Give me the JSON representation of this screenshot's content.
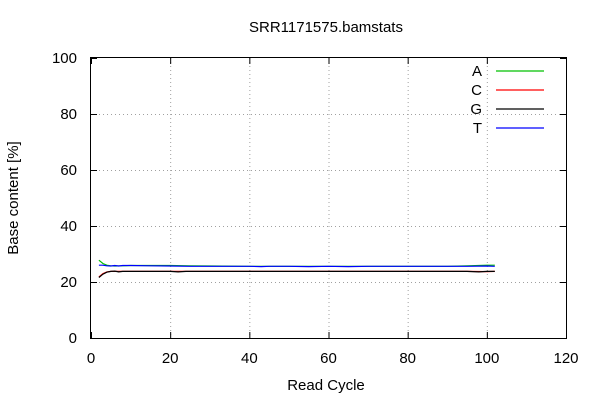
{
  "chart_data": {
    "type": "line",
    "title": "SRR1171575.bamstats",
    "xlabel": "Read Cycle",
    "ylabel": "Base content [%]",
    "xlim": [
      0,
      120
    ],
    "ylim": [
      0,
      100
    ],
    "xticks": [
      0,
      20,
      40,
      60,
      80,
      100,
      120
    ],
    "yticks": [
      0,
      20,
      40,
      60,
      80,
      100
    ],
    "grid": true,
    "legend_position": "top-right",
    "series": [
      {
        "name": "A",
        "color": "#00c000",
        "x": [
          2,
          3,
          4,
          5,
          6,
          8,
          10,
          15,
          20,
          25,
          30,
          40,
          50,
          60,
          70,
          80,
          90,
          95,
          100,
          102
        ],
        "y": [
          27.8,
          26.6,
          26.0,
          25.8,
          25.7,
          25.8,
          25.9,
          25.9,
          25.9,
          25.8,
          25.7,
          25.6,
          25.6,
          25.6,
          25.6,
          25.6,
          25.6,
          25.8,
          26.0,
          26.0
        ]
      },
      {
        "name": "C",
        "color": "#ff0000",
        "x": [
          2,
          3,
          4,
          5,
          6,
          8,
          10,
          15,
          20,
          25,
          30,
          40,
          50,
          60,
          70,
          80,
          90,
          95,
          100,
          102
        ],
        "y": [
          21.8,
          23.0,
          23.6,
          23.8,
          23.8,
          23.8,
          23.8,
          23.8,
          23.8,
          23.8,
          23.8,
          23.8,
          23.8,
          23.8,
          23.8,
          23.8,
          23.8,
          23.8,
          23.7,
          23.8
        ]
      },
      {
        "name": "G",
        "color": "#000000",
        "x": [
          2,
          3,
          4,
          5,
          6,
          7,
          8,
          10,
          15,
          20,
          22,
          24,
          25,
          30,
          40,
          50,
          60,
          70,
          80,
          90,
          95,
          98,
          100,
          102
        ],
        "y": [
          21.6,
          22.8,
          23.5,
          23.8,
          23.9,
          23.6,
          23.8,
          23.8,
          23.8,
          23.8,
          23.6,
          23.8,
          23.8,
          23.8,
          23.8,
          23.8,
          23.8,
          23.8,
          23.8,
          23.8,
          23.8,
          23.6,
          23.8,
          23.8
        ]
      },
      {
        "name": "T",
        "color": "#0000ff",
        "x": [
          2,
          3,
          4,
          5,
          6,
          7,
          8,
          10,
          15,
          20,
          25,
          30,
          40,
          43,
          45,
          50,
          55,
          60,
          65,
          70,
          80,
          90,
          95,
          100,
          102
        ],
        "y": [
          26.0,
          26.0,
          25.8,
          25.7,
          25.9,
          25.7,
          25.9,
          25.9,
          25.8,
          25.7,
          25.6,
          25.6,
          25.6,
          25.5,
          25.6,
          25.6,
          25.5,
          25.6,
          25.5,
          25.6,
          25.6,
          25.6,
          25.6,
          25.7,
          25.6
        ]
      }
    ]
  }
}
